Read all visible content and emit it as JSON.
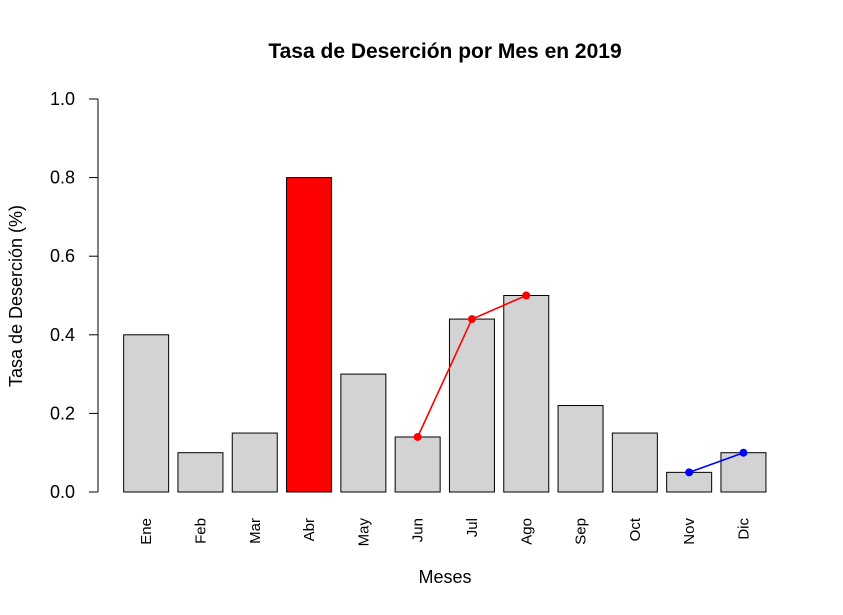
{
  "chart_data": {
    "type": "bar",
    "title": "Tasa de Deserción por Mes en 2019",
    "xlabel": "Meses",
    "ylabel": "Tasa de Deserción (%)",
    "ylim": [
      0,
      1
    ],
    "yticks": [
      "0.0",
      "0.2",
      "0.4",
      "0.6",
      "0.8",
      "1.0"
    ],
    "ytick_values": [
      0,
      0.2,
      0.4,
      0.6,
      0.8,
      1.0
    ],
    "categories": [
      "Ene",
      "Feb",
      "Mar",
      "Abr",
      "May",
      "Jun",
      "Jul",
      "Ago",
      "Sep",
      "Oct",
      "Nov",
      "Dic"
    ],
    "values": [
      0.4,
      0.1,
      0.15,
      0.8,
      0.3,
      0.14,
      0.44,
      0.5,
      0.22,
      0.15,
      0.05,
      0.1
    ],
    "bar_colors": [
      "#d3d3d3",
      "#d3d3d3",
      "#d3d3d3",
      "#ff0000",
      "#d3d3d3",
      "#d3d3d3",
      "#d3d3d3",
      "#d3d3d3",
      "#d3d3d3",
      "#d3d3d3",
      "#d3d3d3",
      "#d3d3d3"
    ],
    "grid": false,
    "overlay_lines": [
      {
        "color": "#ff0000",
        "categories": [
          "Jun",
          "Jul",
          "Ago"
        ],
        "values": [
          0.14,
          0.44,
          0.5
        ]
      },
      {
        "color": "#0000ff",
        "categories": [
          "Nov",
          "Dic"
        ],
        "values": [
          0.05,
          0.1
        ]
      }
    ]
  }
}
